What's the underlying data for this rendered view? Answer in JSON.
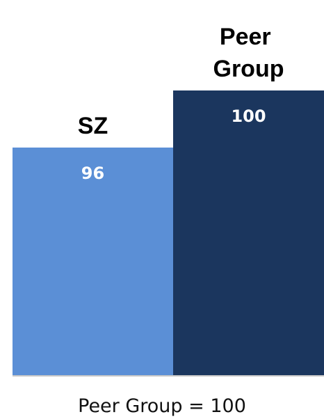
{
  "chart_data": {
    "type": "bar",
    "categories": [
      "SZ",
      "Peer Group"
    ],
    "values": [
      96,
      100
    ],
    "colors": [
      "#5b8fd6",
      "#1b365e"
    ],
    "ylim": [
      80,
      100
    ],
    "note": "Peer Group = 100"
  }
}
